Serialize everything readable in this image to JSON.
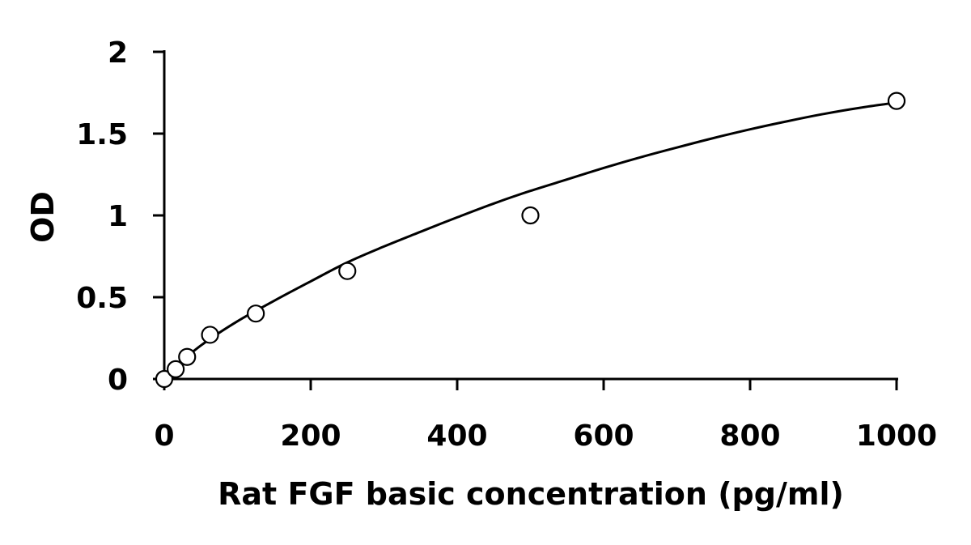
{
  "chart_data": {
    "type": "scatter",
    "title": "",
    "xlabel": "Rat FGF basic concentration (pg/ml)",
    "ylabel": "OD",
    "xlim": [
      0,
      1000
    ],
    "ylim": [
      0,
      2
    ],
    "x_ticks": [
      "0",
      "200",
      "400",
      "600",
      "800",
      "1000"
    ],
    "y_ticks": [
      "0",
      "0.5",
      "1",
      "1.5",
      "2"
    ],
    "grid": false,
    "legend": "none",
    "series": [
      {
        "values_type": "points",
        "marker": "open-circle",
        "x": [
          0,
          15.6,
          31.2,
          62.5,
          125,
          250,
          500,
          1000
        ],
        "y": [
          0.0,
          0.06,
          0.135,
          0.27,
          0.4,
          0.66,
          1.0,
          1.7
        ]
      }
    ],
    "fit_curve": {
      "x": [
        0,
        50,
        100,
        150,
        200,
        250,
        300,
        350,
        400,
        450,
        500,
        550,
        600,
        650,
        700,
        750,
        800,
        850,
        900,
        950,
        1000
      ],
      "y": [
        0.02,
        0.205,
        0.353,
        0.478,
        0.597,
        0.713,
        0.81,
        0.9,
        0.988,
        1.073,
        1.15,
        1.22,
        1.29,
        1.355,
        1.415,
        1.473,
        1.526,
        1.575,
        1.62,
        1.658,
        1.69
      ]
    },
    "colors": {
      "axis": "#000000",
      "marker_stroke": "#000000",
      "marker_fill": "#ffffff",
      "curve": "#000000"
    }
  }
}
